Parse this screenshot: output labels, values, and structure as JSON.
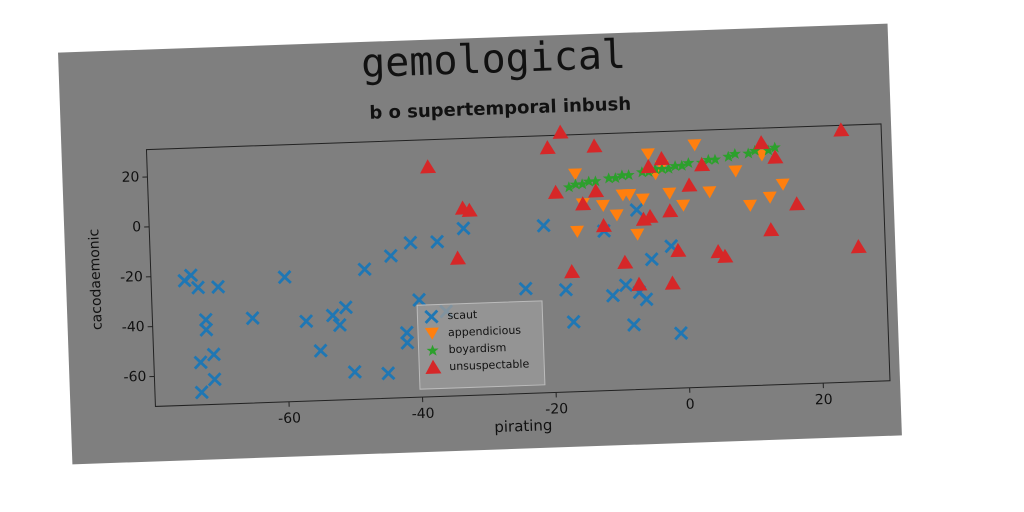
{
  "chart_data": {
    "type": "scatter",
    "title": "gemological",
    "subtitle": "b o supertemporal inbush",
    "xlabel": "pirating",
    "ylabel": "cacodaemonic",
    "xlim": [
      -80,
      30
    ],
    "ylim": [
      -72,
      31
    ],
    "xticks": [
      -60,
      -40,
      -20,
      0,
      20
    ],
    "yticks": [
      -60,
      -40,
      -20,
      0,
      20
    ],
    "legend": "lower center",
    "series": [
      {
        "name": "scaut",
        "color": "#1f77b4",
        "marker": "x",
        "x": [
          -75,
          -74,
          -73,
          -70,
          -72,
          -72,
          -71,
          -73,
          -71,
          -73,
          -65,
          -60,
          -57,
          -55,
          -53,
          -52,
          -51,
          -50,
          -48,
          -45,
          -44,
          -42,
          -42,
          -41,
          -40,
          -37,
          -36,
          -33,
          -24,
          -21,
          -18,
          -17,
          -12,
          -11,
          -9,
          -8,
          -7,
          -6,
          -5,
          -2,
          -1,
          -7
        ],
        "y": [
          -22,
          -20,
          -25,
          -25,
          -38,
          -42,
          -52,
          -55,
          -62,
          -67,
          -38,
          -22,
          -40,
          -52,
          -38,
          -42,
          -35,
          -61,
          -20,
          -62,
          -15,
          -46,
          -50,
          -10,
          -33,
          -10,
          -38,
          -5,
          -30,
          -5,
          -31,
          -44,
          -8,
          -34,
          -30,
          -46,
          -33,
          -36,
          -20,
          -15,
          -50,
          0
        ]
      },
      {
        "name": "appendicious",
        "color": "#ff7f0e",
        "marker": "v",
        "x": [
          -16,
          -15,
          -16,
          -12,
          -9,
          -8,
          -7,
          -6,
          -5,
          -4,
          -3,
          -2,
          0,
          2,
          4,
          8,
          10,
          12,
          13,
          15,
          -10
        ],
        "y": [
          15,
          3,
          -8,
          2,
          6,
          6,
          -10,
          4,
          22,
          14,
          17,
          6,
          1,
          25,
          6,
          14,
          0,
          20,
          3,
          8,
          -2
        ]
      },
      {
        "name": "boyardism",
        "color": "#2ca02c",
        "marker": "*",
        "x": [
          -17,
          -16,
          -15,
          -14,
          -13,
          -11,
          -10,
          -9,
          -8,
          -6,
          -5,
          -4,
          -3,
          -2,
          -1,
          0,
          1,
          3,
          4,
          5,
          7,
          8,
          10,
          11,
          13,
          14
        ],
        "y": [
          10,
          11,
          11,
          12,
          12,
          13,
          13,
          14,
          14,
          15,
          15,
          16,
          16,
          16,
          17,
          17,
          18,
          18,
          19,
          19,
          20,
          21,
          21,
          22,
          22,
          23
        ]
      },
      {
        "name": "unsuspectable",
        "color": "#d62728",
        "marker": "^",
        "x": [
          -38,
          -33,
          -32,
          -34,
          -20,
          -19,
          -18,
          -17,
          -13,
          -13,
          -12,
          -5,
          -5,
          -3,
          -2,
          -2,
          -1,
          1,
          3,
          5,
          6,
          12,
          13,
          14,
          17,
          24,
          26,
          -9,
          -7,
          -6,
          -15
        ],
        "y": [
          20,
          3,
          2,
          -17,
          26,
          8,
          32,
          -24,
          26,
          8,
          -6,
          17,
          -3,
          20,
          -1,
          -30,
          -17,
          9,
          17,
          -18,
          -20,
          25,
          -10,
          19,
          0,
          29,
          -18,
          -21,
          -30,
          -4,
          3
        ]
      }
    ]
  }
}
